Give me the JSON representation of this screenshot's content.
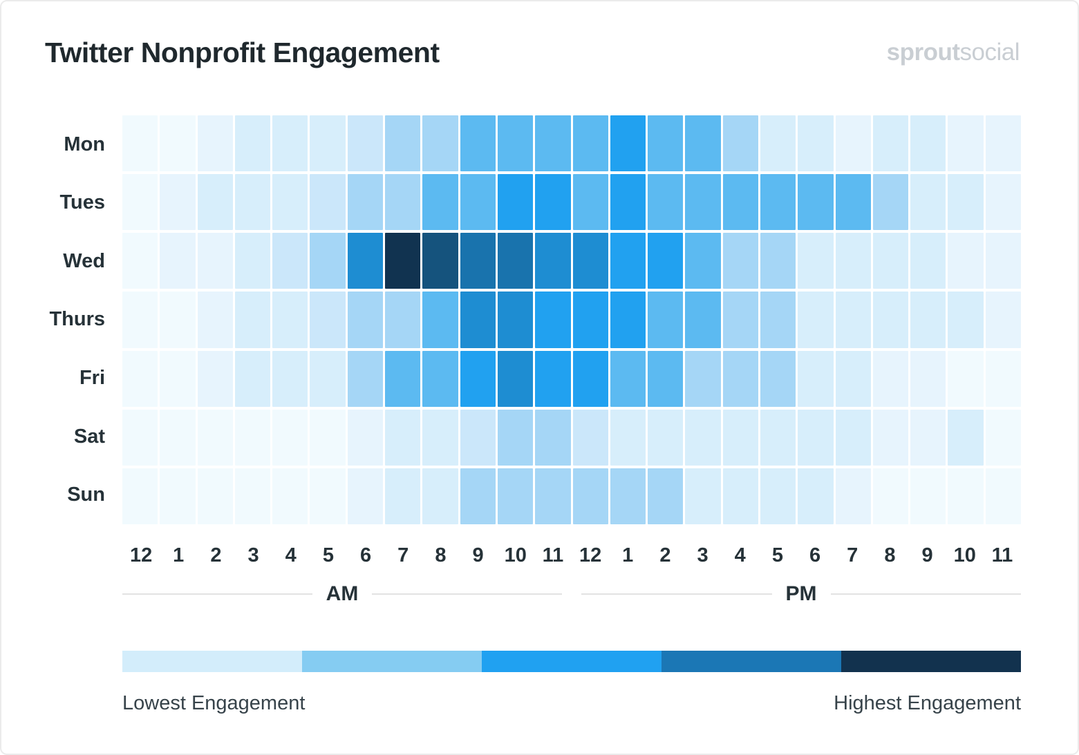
{
  "header": {
    "title": "Twitter Nonprofit Engagement",
    "logo": {
      "bold": "sprout",
      "light": "social"
    }
  },
  "chart_data": {
    "type": "heatmap",
    "title": "Twitter Nonprofit Engagement",
    "x_categories": [
      "12",
      "1",
      "2",
      "3",
      "4",
      "5",
      "6",
      "7",
      "8",
      "9",
      "10",
      "11",
      "12",
      "1",
      "2",
      "3",
      "4",
      "5",
      "6",
      "7",
      "8",
      "9",
      "10",
      "11"
    ],
    "x_groups": [
      {
        "label": "AM",
        "span": 12
      },
      {
        "label": "PM",
        "span": 12
      }
    ],
    "y_categories": [
      "Mon",
      "Tues",
      "Wed",
      "Thurs",
      "Fri",
      "Sat",
      "Sun"
    ],
    "value_scale": "engagement level, 0 = lowest to 10 = highest",
    "rows": [
      [
        0,
        0,
        1,
        2,
        2,
        2,
        3,
        4,
        4,
        5,
        5,
        5,
        5,
        6,
        5,
        5,
        4,
        2,
        2,
        1,
        2,
        2,
        1,
        1
      ],
      [
        0,
        1,
        2,
        2,
        2,
        3,
        4,
        4,
        5,
        5,
        6,
        6,
        5,
        6,
        5,
        5,
        5,
        5,
        5,
        5,
        4,
        2,
        2,
        1
      ],
      [
        0,
        1,
        1,
        2,
        3,
        4,
        7,
        10,
        9,
        8,
        8,
        7,
        7,
        6,
        6,
        5,
        4,
        4,
        2,
        2,
        2,
        2,
        1,
        1
      ],
      [
        0,
        0,
        1,
        2,
        2,
        3,
        4,
        4,
        5,
        7,
        7,
        6,
        6,
        6,
        5,
        5,
        4,
        4,
        2,
        2,
        2,
        2,
        2,
        1
      ],
      [
        0,
        0,
        1,
        2,
        2,
        2,
        4,
        5,
        5,
        6,
        7,
        6,
        6,
        5,
        5,
        4,
        4,
        4,
        2,
        2,
        1,
        1,
        0,
        0
      ],
      [
        0,
        0,
        0,
        0,
        0,
        0,
        1,
        2,
        2,
        3,
        4,
        4,
        3,
        2,
        2,
        2,
        2,
        2,
        2,
        2,
        1,
        1,
        2,
        0
      ],
      [
        0,
        0,
        0,
        0,
        0,
        0,
        1,
        2,
        2,
        4,
        4,
        4,
        4,
        4,
        4,
        2,
        2,
        2,
        2,
        1,
        0,
        0,
        0,
        0
      ]
    ],
    "palette": [
      "#F1FAFE",
      "#E7F4FD",
      "#D7EEFB",
      "#CBE7FA",
      "#A5D6F6",
      "#5CBAF1",
      "#21A1F0",
      "#1E8DD2",
      "#1973AD",
      "#15537D",
      "#113350"
    ],
    "legend": {
      "colors": [
        "#D3EDFB",
        "#85CCF2",
        "#20A1F1",
        "#1B77B5",
        "#12324E"
      ],
      "low_label": "Lowest Engagement",
      "high_label": "Highest Engagement"
    }
  }
}
